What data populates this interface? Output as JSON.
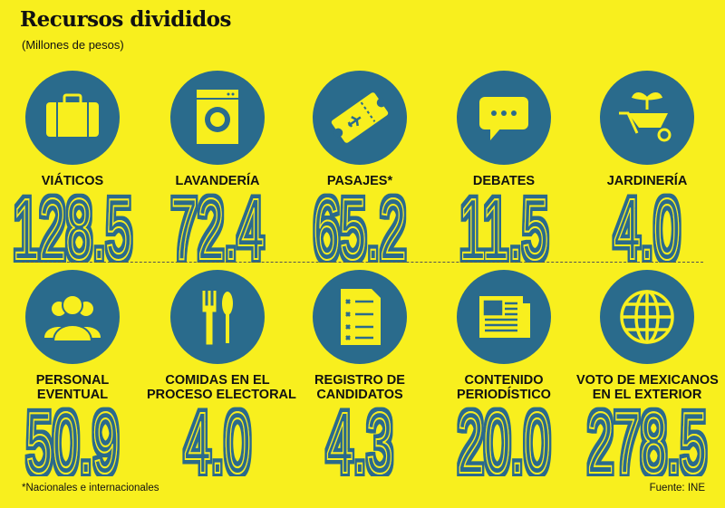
{
  "header": {
    "title": "Recursos divididos",
    "subtitle": "(Millones de pesos)"
  },
  "colors": {
    "background": "#f8ef1e",
    "accent": "#2a6b8c"
  },
  "items": [
    {
      "icon": "suitcase-icon",
      "label": [
        "VIÁTICOS"
      ],
      "value": "128.5"
    },
    {
      "icon": "washing-machine-icon",
      "label": [
        "LAVANDERÍA"
      ],
      "value": "72.4"
    },
    {
      "icon": "plane-ticket-icon",
      "label": [
        "PASAJES*"
      ],
      "value": "65.2"
    },
    {
      "icon": "speech-bubble-icon",
      "label": [
        "DEBATES"
      ],
      "value": "11.5"
    },
    {
      "icon": "wheelbarrow-plant-icon",
      "label": [
        "JARDINERÍA"
      ],
      "value": "4.0"
    },
    {
      "icon": "people-icon",
      "label": [
        "PERSONAL",
        "EVENTUAL"
      ],
      "value": "50.9"
    },
    {
      "icon": "fork-spoon-icon",
      "label": [
        "COMIDAS EN EL",
        "PROCESO ELECTORAL"
      ],
      "value": "4.0"
    },
    {
      "icon": "checklist-icon",
      "label": [
        "REGISTRO DE",
        "CANDIDATOS"
      ],
      "value": "4.3"
    },
    {
      "icon": "newspaper-icon",
      "label": [
        "CONTENIDO",
        "PERIODÍSTICO"
      ],
      "value": "20.0"
    },
    {
      "icon": "globe-icon",
      "label": [
        "VOTO DE MEXICANOS",
        "EN EL EXTERIOR"
      ],
      "value": "278.5"
    }
  ],
  "footer": {
    "note": "*Nacionales e internacionales",
    "source": "Fuente: INE"
  }
}
